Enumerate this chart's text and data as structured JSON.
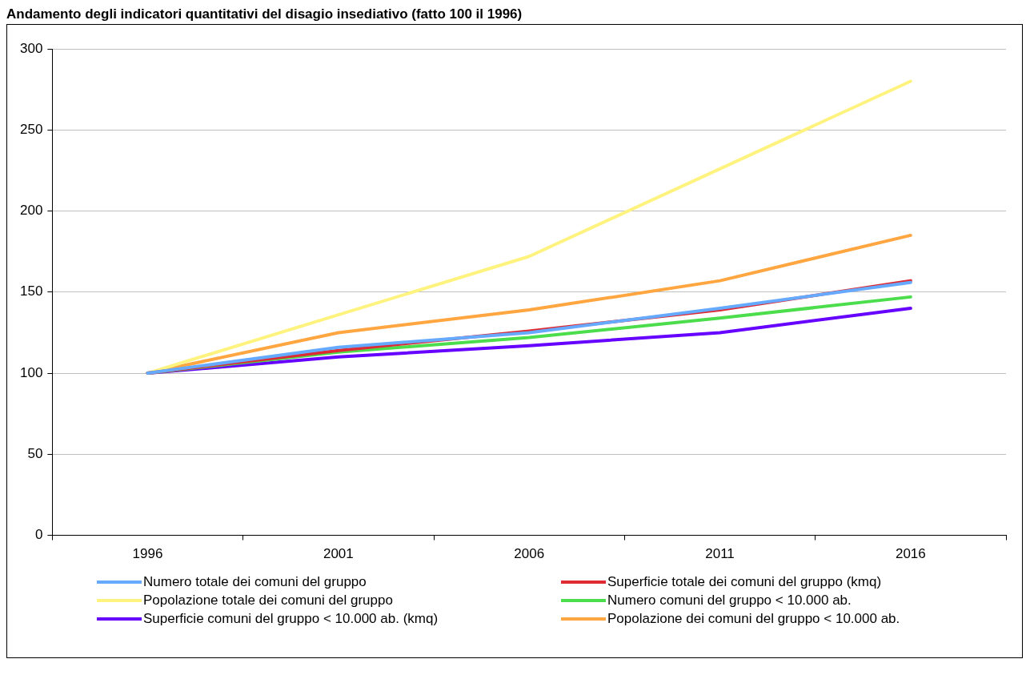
{
  "chart_data": {
    "type": "line",
    "title": "Andamento degli indicatori quantitativi del disagio insediativo (fatto 100 il 1996)",
    "categories": [
      "1996",
      "2001",
      "2006",
      "2011",
      "2016"
    ],
    "series": [
      {
        "name": "Numero totale dei comuni del gruppo",
        "color": "#66aaff",
        "values": [
          100,
          116,
          125,
          140,
          156
        ]
      },
      {
        "name": "Superficie totale dei comuni del gruppo (kmq)",
        "color": "#dd2a33",
        "values": [
          100,
          114,
          126,
          139,
          157
        ]
      },
      {
        "name": "Popolazione totale dei comuni del gruppo",
        "color": "#fff380",
        "values": [
          100,
          136,
          172,
          226,
          280
        ]
      },
      {
        "name": "Numero comuni del gruppo < 10.000 ab.",
        "color": "#4cdd4c",
        "values": [
          100,
          113,
          122,
          134,
          147
        ]
      },
      {
        "name": "Superficie comuni del gruppo < 10.000 ab. (kmq)",
        "color": "#6600ff",
        "values": [
          100,
          110,
          117,
          125,
          140
        ]
      },
      {
        "name": "Popolazione dei comuni del gruppo < 10.000 ab.",
        "color": "#ffa640",
        "values": [
          100,
          125,
          139,
          157,
          185
        ]
      }
    ],
    "ylim": [
      0,
      300
    ],
    "yticks": [
      0,
      50,
      100,
      150,
      200,
      250,
      300
    ],
    "grid": "y",
    "legend": "bottom",
    "marker": "none",
    "line_style": "solid"
  }
}
